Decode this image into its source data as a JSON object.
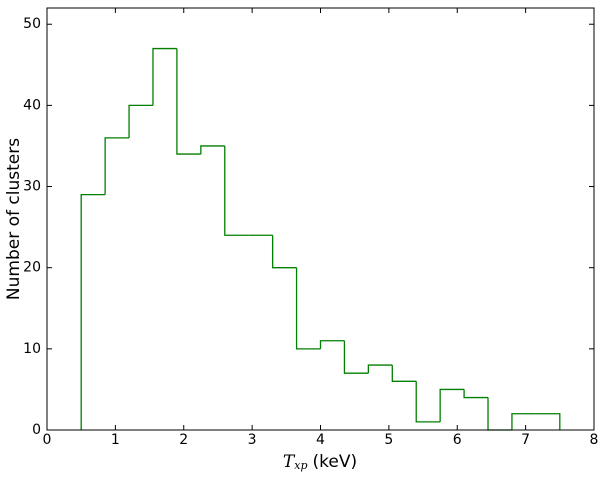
{
  "chart_data": {
    "type": "histogram",
    "xlabel_symbol": "T",
    "xlabel_subscript": "xp",
    "xlabel_unit": "(keV)",
    "ylabel": "Number of clusters",
    "bins": [
      0.5,
      0.85,
      1.2,
      1.55,
      1.9,
      2.25,
      2.6,
      2.95,
      3.3,
      3.65,
      4.0,
      4.35,
      4.7,
      5.05,
      5.4,
      5.75,
      6.1,
      6.45,
      6.8,
      7.15,
      7.5
    ],
    "values": [
      29,
      36,
      40,
      47,
      34,
      35,
      24,
      24,
      20,
      10,
      11,
      7,
      8,
      6,
      1,
      5,
      4,
      0,
      2,
      2
    ],
    "color": "#007f00",
    "xlim": [
      0,
      8
    ],
    "xticks": [
      0,
      1,
      2,
      3,
      4,
      5,
      6,
      7,
      8
    ],
    "ylim": [
      0,
      52
    ],
    "yticks": [
      0,
      10,
      20,
      30,
      40,
      50
    ]
  }
}
